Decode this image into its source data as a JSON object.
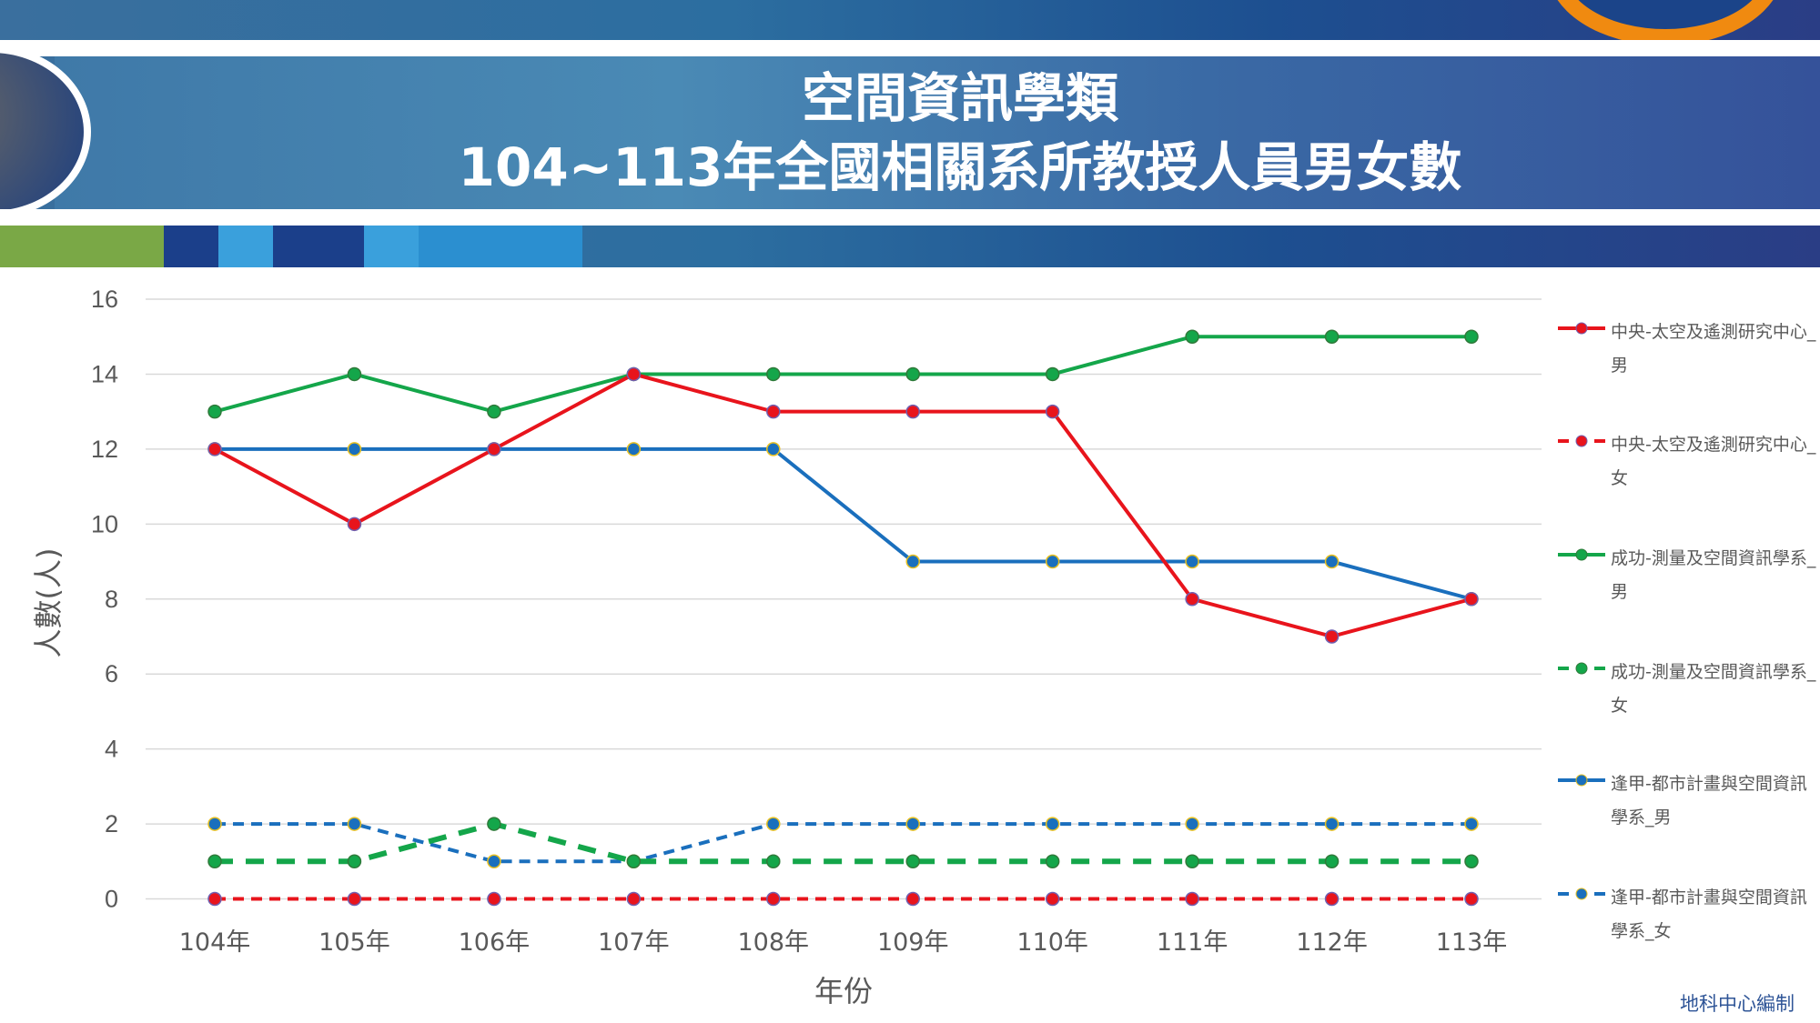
{
  "header": {
    "title_line1": "空間資訊學類",
    "title_line2": "104~113年全國相關系所教授人員男女數"
  },
  "footer": "地科中心編制",
  "chart_data": {
    "type": "line",
    "title": "空間資訊學類 104~113年全國相關系所教授人員男女數",
    "xlabel": "年份",
    "ylabel": "人數(人)",
    "categories": [
      "104年",
      "105年",
      "106年",
      "107年",
      "108年",
      "109年",
      "110年",
      "111年",
      "112年",
      "113年"
    ],
    "ylim": [
      0,
      16
    ],
    "yticks": [
      0,
      2,
      4,
      6,
      8,
      10,
      12,
      14,
      16
    ],
    "grid": true,
    "legend": "right",
    "series": [
      {
        "name": "中央-太空及遙測研究中心_男",
        "color": "#e8141c",
        "dash": false,
        "values": [
          12,
          10,
          12,
          14,
          13,
          13,
          13,
          8,
          7,
          8
        ]
      },
      {
        "name": "中央-太空及遙測研究中心_女",
        "color": "#e8141c",
        "dash": true,
        "values": [
          0,
          0,
          0,
          0,
          0,
          0,
          0,
          0,
          0,
          0
        ]
      },
      {
        "name": "成功-測量及空間資訊學系_男",
        "color": "#14a64a",
        "dash": false,
        "values": [
          13,
          14,
          13,
          14,
          14,
          14,
          14,
          15,
          15,
          15
        ]
      },
      {
        "name": "成功-測量及空間資訊學系_女",
        "color": "#14a64a",
        "dash": true,
        "values": [
          1,
          1,
          2,
          1,
          1,
          1,
          1,
          1,
          1,
          1
        ]
      },
      {
        "name": "逢甲-都市計畫與空間資訊學系_男",
        "color": "#1a6fbd",
        "dash": false,
        "values": [
          12,
          12,
          12,
          12,
          12,
          9,
          9,
          9,
          9,
          8
        ]
      },
      {
        "name": "逢甲-都市計畫與空間資訊學系_女",
        "color": "#1a6fbd",
        "dash": true,
        "values": [
          2,
          2,
          1,
          1,
          2,
          2,
          2,
          2,
          2,
          2
        ]
      }
    ]
  }
}
